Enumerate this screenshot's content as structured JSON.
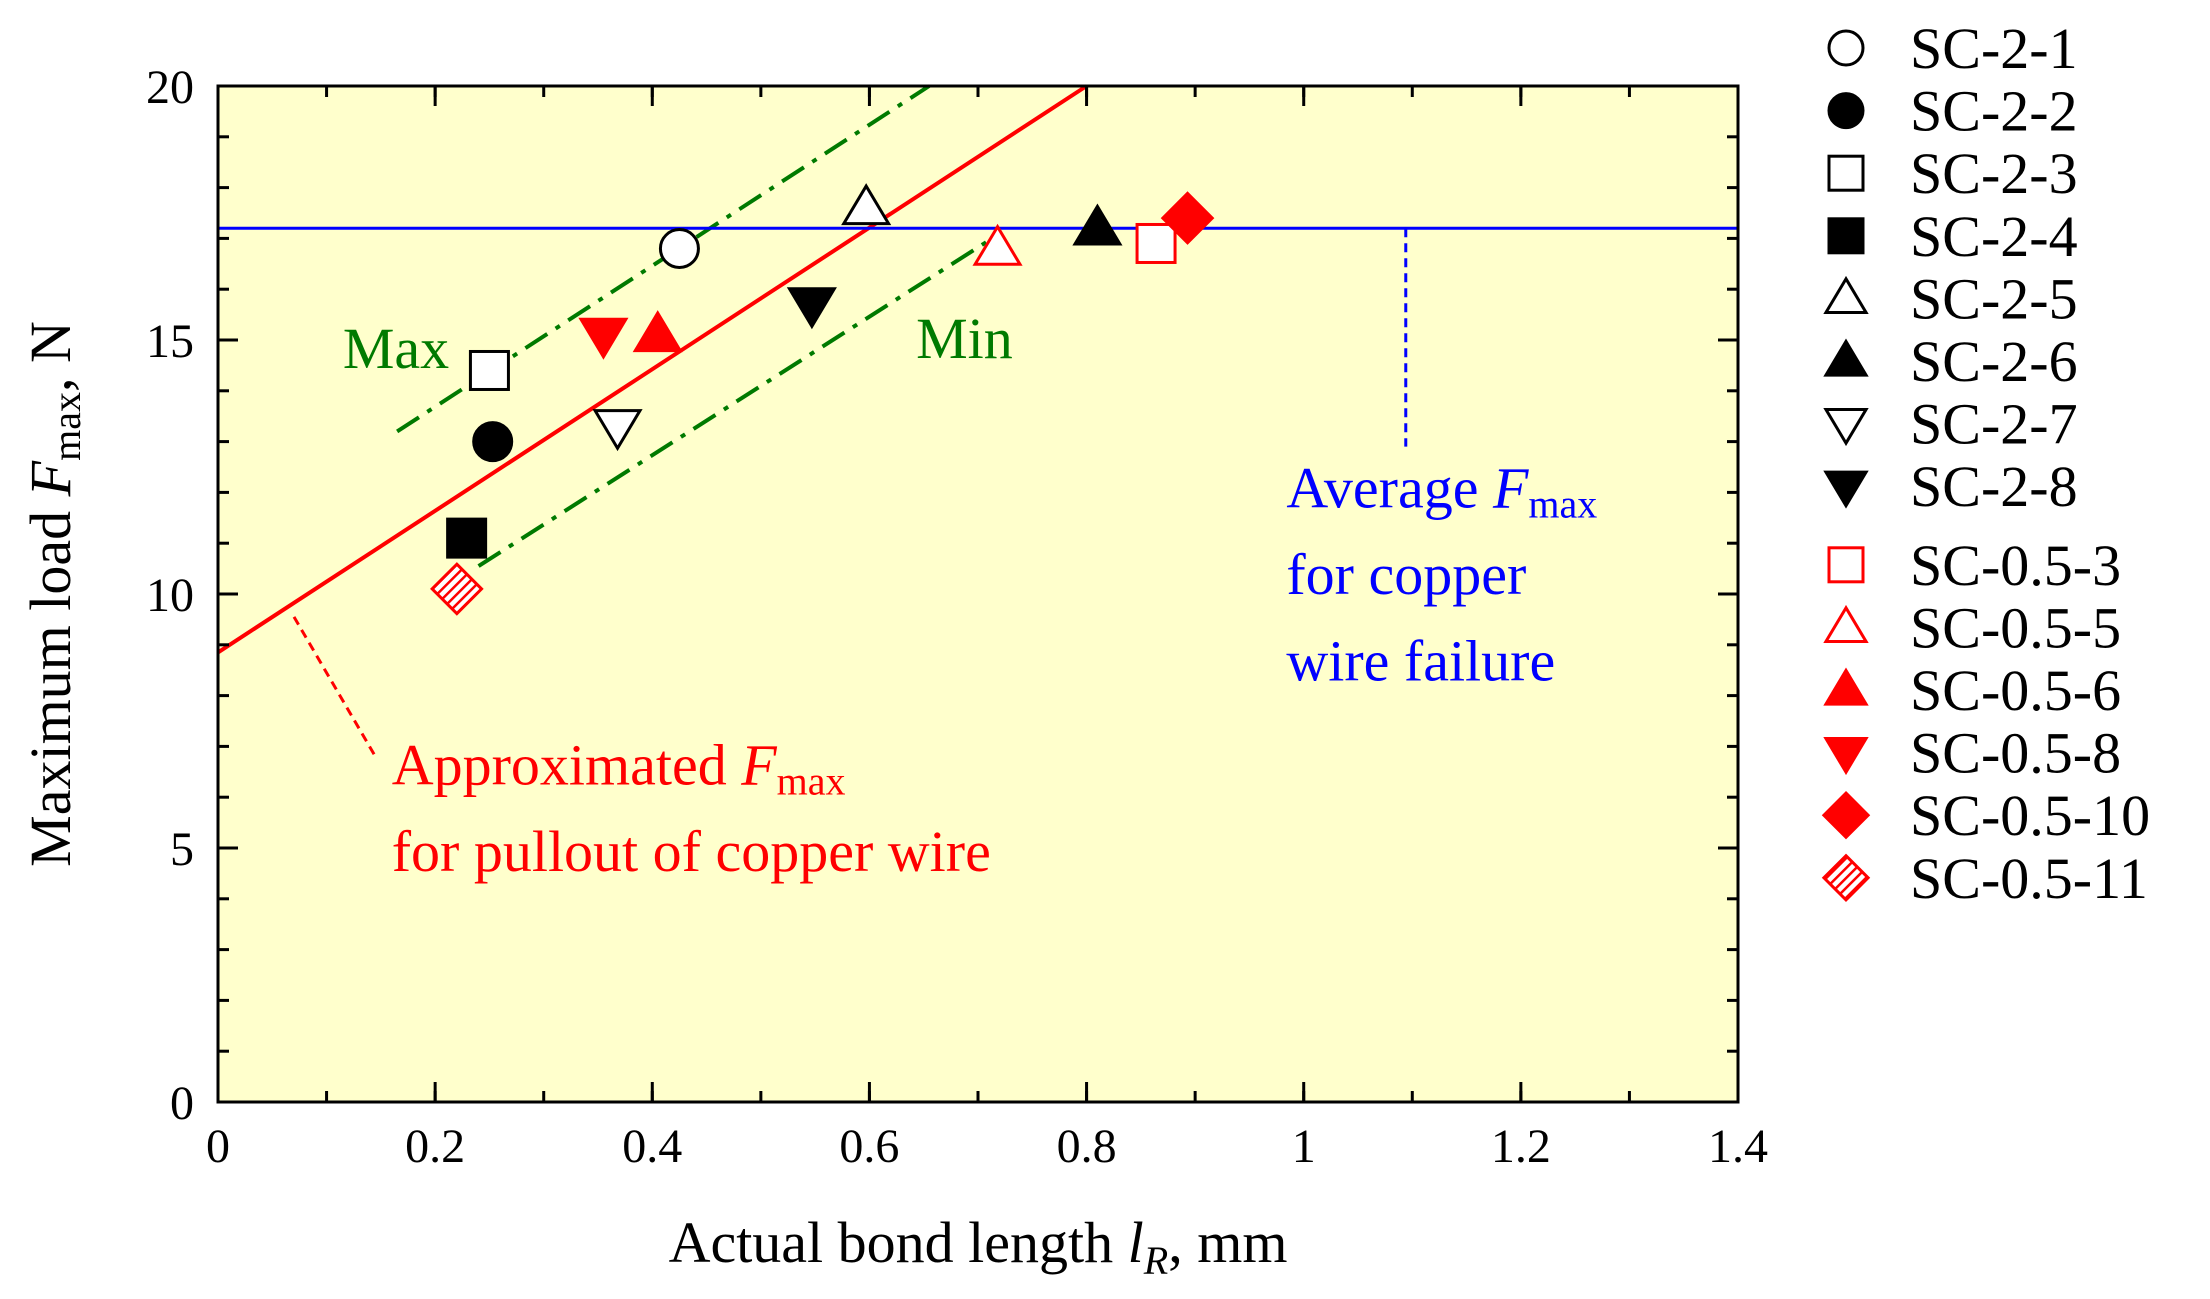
{
  "chart_data": {
    "type": "scatter",
    "title": "",
    "xlabel": "Actual bond length",
    "xlabel_symbol": "l",
    "xlabel_subscript": "R",
    "xlabel_unit": ", mm",
    "ylabel": "Maximum load",
    "ylabel_symbol": "F",
    "ylabel_subscript": "max",
    "ylabel_unit": ", N",
    "xlim": [
      0,
      1.4
    ],
    "ylim": [
      0,
      20
    ],
    "x_ticks": [
      0,
      0.2,
      0.4,
      0.6,
      0.8,
      1,
      1.2,
      1.4
    ],
    "x_tick_labels": [
      "0",
      "0.2",
      "0.4",
      "0.6",
      "0.8",
      "1",
      "1.2",
      "1.4"
    ],
    "y_ticks": [
      0,
      5,
      10,
      15,
      20
    ],
    "y_tick_labels": [
      "0",
      "5",
      "10",
      "15",
      "20"
    ],
    "x_minor_step": 0.1,
    "y_minor_step": 1,
    "background": "#ffffcc",
    "grid": false,
    "legend_position": "right",
    "series": [
      {
        "name": "SC-2-1",
        "marker": "circle-open",
        "color": "#000000",
        "points": [
          [
            0.425,
            16.8
          ]
        ]
      },
      {
        "name": "SC-2-2",
        "marker": "circle-filled",
        "color": "#000000",
        "points": [
          [
            0.253,
            13.0
          ]
        ]
      },
      {
        "name": "SC-2-3",
        "marker": "square-open",
        "color": "#000000",
        "points": [
          [
            0.25,
            14.4
          ]
        ]
      },
      {
        "name": "SC-2-4",
        "marker": "square-filled",
        "color": "#000000",
        "points": [
          [
            0.229,
            11.1
          ]
        ]
      },
      {
        "name": "SC-2-5",
        "marker": "triangle-up-open",
        "color": "#000000",
        "points": [
          [
            0.597,
            17.6
          ]
        ]
      },
      {
        "name": "SC-2-6",
        "marker": "triangle-up-filled",
        "color": "#000000",
        "points": [
          [
            0.81,
            17.2
          ]
        ]
      },
      {
        "name": "SC-2-7",
        "marker": "triangle-down-open",
        "color": "#000000",
        "points": [
          [
            0.368,
            13.3
          ]
        ]
      },
      {
        "name": "SC-2-8",
        "marker": "triangle-down-filled",
        "color": "#000000",
        "points": [
          [
            0.547,
            15.7
          ]
        ]
      },
      {
        "name": "SC-0.5-3",
        "marker": "square-open",
        "color": "#ff0000",
        "points": [
          [
            0.864,
            16.9
          ]
        ]
      },
      {
        "name": "SC-0.5-5",
        "marker": "triangle-up-open",
        "color": "#ff0000",
        "points": [
          [
            0.718,
            16.8
          ]
        ]
      },
      {
        "name": "SC-0.5-6",
        "marker": "triangle-up-filled",
        "color": "#ff0000",
        "points": [
          [
            0.405,
            15.1
          ]
        ]
      },
      {
        "name": "SC-0.5-8",
        "marker": "triangle-down-filled",
        "color": "#ff0000",
        "points": [
          [
            0.355,
            15.1
          ]
        ]
      },
      {
        "name": "SC-0.5-10",
        "marker": "diamond-filled",
        "color": "#ff0000",
        "points": [
          [
            0.893,
            17.4
          ]
        ]
      },
      {
        "name": "SC-0.5-11",
        "marker": "diamond-hatched",
        "color": "#ff0000",
        "points": [
          [
            0.22,
            10.1
          ]
        ]
      }
    ],
    "lines": [
      {
        "name": "approximated-fmax",
        "color": "#ff0000",
        "style": "solid",
        "x": [
          0,
          0.8
        ],
        "y": [
          8.85,
          20
        ]
      },
      {
        "name": "max-bound",
        "color": "#007a00",
        "style": "dashdot",
        "x": [
          0.165,
          0.655
        ],
        "y": [
          13.2,
          20
        ]
      },
      {
        "name": "min-bound",
        "color": "#007a00",
        "style": "dashdot",
        "x": [
          0.24,
          0.713
        ],
        "y": [
          10.55,
          17.0
        ]
      },
      {
        "name": "average-fmax",
        "color": "#0000ff",
        "style": "solid",
        "x": [
          0,
          1.4
        ],
        "y": [
          17.2,
          17.2
        ]
      }
    ],
    "leaders": [
      {
        "name": "approx-leader",
        "color": "#ff0000",
        "x": [
          0.07,
          0.145
        ],
        "y": [
          9.55,
          6.8
        ]
      },
      {
        "name": "average-leader",
        "color": "#0000ff",
        "x": [
          1.094,
          1.094
        ],
        "y": [
          17.2,
          12.9
        ]
      }
    ],
    "annotations": [
      {
        "key": "max",
        "text": "Max",
        "color": "#007a00",
        "x": 0.115,
        "y": 14.45
      },
      {
        "key": "min",
        "text": "Min",
        "color": "#007a00",
        "x": 0.643,
        "y": 14.65
      },
      {
        "key": "average_line1",
        "text": "Average ",
        "symbol": "F",
        "subscript": "max",
        "color": "#0000ff",
        "x": 0.984,
        "y": 11.7
      },
      {
        "key": "average_line2",
        "text": "for copper",
        "color": "#0000ff",
        "x": 0.984,
        "y": 10.0
      },
      {
        "key": "average_line3",
        "text": "wire failure",
        "color": "#0000ff",
        "x": 0.984,
        "y": 8.3
      },
      {
        "key": "approx_line1",
        "text": "Approximated ",
        "symbol": "F",
        "subscript": "max",
        "color": "#ff0000",
        "x": 0.16,
        "y": 6.25
      },
      {
        "key": "approx_line2",
        "text": "for pullout of copper wire",
        "color": "#ff0000",
        "x": 0.16,
        "y": 4.55
      }
    ]
  }
}
